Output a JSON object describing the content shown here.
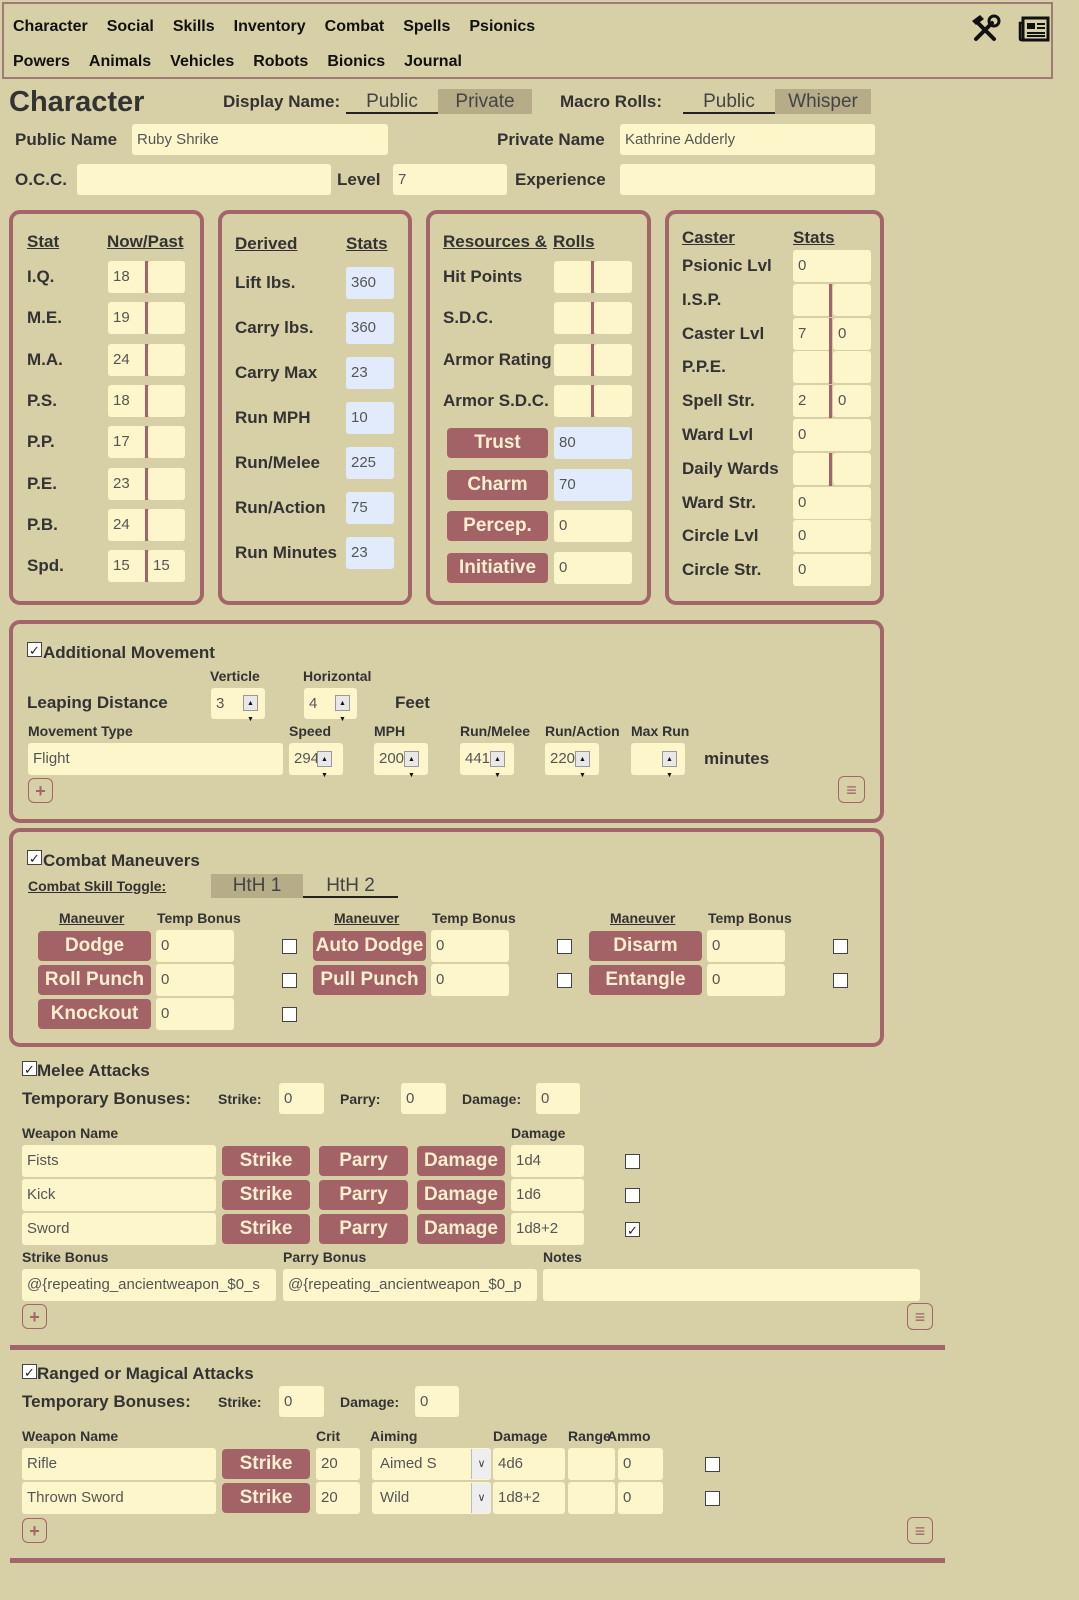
{
  "nav": {
    "row1": [
      "Character",
      "Social",
      "Skills",
      "Inventory",
      "Combat",
      "Spells",
      "Psionics"
    ],
    "row2": [
      "Powers",
      "Animals",
      "Vehicles",
      "Robots",
      "Bionics",
      "Journal"
    ],
    "icons": [
      "tools-icon",
      "journal-icon"
    ]
  },
  "header": {
    "title": "Character",
    "display_name_label": "Display Name:",
    "display_options": [
      "Public",
      "Private"
    ],
    "display_selected": "Public",
    "macro_label": "Macro Rolls:",
    "macro_options": [
      "Public",
      "Whisper"
    ],
    "macro_selected": "Public"
  },
  "identity": {
    "public_name_label": "Public Name",
    "public_name": "Ruby Shrike",
    "private_name_label": "Private Name",
    "private_name": "Kathrine Adderly",
    "occ_label": "O.C.C.",
    "occ": "",
    "level_label": "Level",
    "level": "7",
    "experience_label": "Experience",
    "experience": ""
  },
  "stats": {
    "header_stat": "Stat",
    "header_nowpast": "Now/Past",
    "rows": [
      {
        "label": "I.Q.",
        "now": "18",
        "past": ""
      },
      {
        "label": "M.E.",
        "now": "19",
        "past": ""
      },
      {
        "label": "M.A.",
        "now": "24",
        "past": ""
      },
      {
        "label": "P.S.",
        "now": "18",
        "past": ""
      },
      {
        "label": "P.P.",
        "now": "17",
        "past": ""
      },
      {
        "label": "P.E.",
        "now": "23",
        "past": ""
      },
      {
        "label": "P.B.",
        "now": "24",
        "past": ""
      },
      {
        "label": "Spd.",
        "now": "15",
        "past": "15"
      }
    ]
  },
  "derived": {
    "header_a": "Derived",
    "header_b": "Stats",
    "rows": [
      {
        "label": "Lift lbs.",
        "value": "360"
      },
      {
        "label": "Carry lbs.",
        "value": "360"
      },
      {
        "label": "Carry Max",
        "value": "23"
      },
      {
        "label": "Run MPH",
        "value": "10"
      },
      {
        "label": "Run/Melee",
        "value": "225"
      },
      {
        "label": "Run/Action",
        "value": "75"
      },
      {
        "label": "Run Minutes",
        "value": "23"
      }
    ]
  },
  "resources": {
    "header_a": "Resources &",
    "header_b": "Rolls",
    "rows": [
      {
        "label": "Hit Points",
        "a": "",
        "b": ""
      },
      {
        "label": "S.D.C.",
        "a": "",
        "b": ""
      },
      {
        "label": "Armor Rating",
        "a": "",
        "b": ""
      },
      {
        "label": "Armor S.D.C.",
        "a": "",
        "b": ""
      }
    ],
    "rolls": [
      {
        "label": "Trust",
        "value": "80",
        "highlight": true
      },
      {
        "label": "Charm",
        "value": "70",
        "highlight": true
      },
      {
        "label": "Percep.",
        "value": "0",
        "highlight": false
      },
      {
        "label": "Initiative",
        "value": "0",
        "highlight": false
      }
    ]
  },
  "caster": {
    "header_a": "Caster",
    "header_b": "Stats",
    "rows": [
      {
        "label": "Psionic Lvl",
        "value": "0"
      },
      {
        "label": "I.S.P.",
        "a": "",
        "b": ""
      },
      {
        "label": "Caster Lvl",
        "a": "7",
        "b": "0"
      },
      {
        "label": "P.P.E.",
        "a": "",
        "b": ""
      },
      {
        "label": "Spell Str.",
        "a": "2",
        "b": "0"
      },
      {
        "label": "Ward Lvl",
        "value": "0"
      },
      {
        "label": "Daily Wards",
        "a": "",
        "b": ""
      },
      {
        "label": "Ward Str.",
        "value": "0"
      },
      {
        "label": "Circle Lvl",
        "value": "0"
      },
      {
        "label": "Circle Str.",
        "value": "0"
      }
    ]
  },
  "movement": {
    "enabled": true,
    "title": "Additional Movement",
    "verticle_label": "Verticle",
    "horizontal_label": "Horizontal",
    "leaping_label": "Leaping Distance",
    "verticle": "3",
    "horizontal": "4",
    "feet_label": "Feet",
    "columns": [
      "Movement Type",
      "Speed",
      "MPH",
      "Run/Melee",
      "Run/Action",
      "Max Run"
    ],
    "rows": [
      {
        "type": "Flight",
        "speed": "294",
        "mph": "200",
        "run_melee": "441",
        "run_action": "220",
        "max_run": ""
      }
    ],
    "minutes_label": "minutes"
  },
  "combat": {
    "enabled": true,
    "title": "Combat Maneuvers",
    "toggle_label": "Combat Skill Toggle:",
    "toggle_options": [
      "HtH 1",
      "HtH 2"
    ],
    "toggle_selected": "HtH 2",
    "maneuver_header": "Maneuver",
    "bonus_header": "Temp Bonus",
    "columns": [
      [
        {
          "label": "Dodge",
          "bonus": "0",
          "checked": false
        },
        {
          "label": "Roll Punch",
          "bonus": "0",
          "checked": false
        },
        {
          "label": "Knockout",
          "bonus": "0",
          "checked": false
        }
      ],
      [
        {
          "label": "Auto Dodge",
          "bonus": "0",
          "checked": false
        },
        {
          "label": "Pull Punch",
          "bonus": "0",
          "checked": false
        }
      ],
      [
        {
          "label": "Disarm",
          "bonus": "0",
          "checked": false
        },
        {
          "label": "Entangle",
          "bonus": "0",
          "checked": false
        }
      ]
    ]
  },
  "melee": {
    "enabled": true,
    "title": "Melee Attacks",
    "temp_label": "Temporary Bonuses:",
    "strike_label": "Strike:",
    "strike": "0",
    "parry_label": "Parry:",
    "parry": "0",
    "damage_label": "Damage:",
    "damage": "0",
    "weapon_header": "Weapon Name",
    "damage_header": "Damage",
    "strike_button": "Strike",
    "parry_button": "Parry",
    "damage_button": "Damage",
    "weapons": [
      {
        "name": "Fists",
        "damage": "1d4",
        "checked": false
      },
      {
        "name": "Kick",
        "damage": "1d6",
        "checked": false
      },
      {
        "name": "Sword",
        "damage": "1d8+2",
        "checked": true
      }
    ],
    "strike_bonus_label": "Strike Bonus",
    "parry_bonus_label": "Parry Bonus",
    "notes_label": "Notes",
    "strike_bonus": "@{repeating_ancientweapon_$0_s",
    "parry_bonus": "@{repeating_ancientweapon_$0_p",
    "notes": ""
  },
  "ranged": {
    "enabled": true,
    "title": "Ranged or Magical Attacks",
    "temp_label": "Temporary Bonuses:",
    "strike_label": "Strike:",
    "strike": "0",
    "damage_label": "Damage:",
    "damage": "0",
    "headers": {
      "weapon": "Weapon Name",
      "crit": "Crit",
      "aiming": "Aiming",
      "damage": "Damage",
      "range": "Range",
      "ammo": "Ammo"
    },
    "strike_button": "Strike",
    "weapons": [
      {
        "name": "Rifle",
        "crit": "20",
        "aiming": "Aimed S",
        "damage": "4d6",
        "range": "",
        "ammo": "0",
        "checked": false
      },
      {
        "name": "Thrown Sword",
        "crit": "20",
        "aiming": "Wild",
        "damage": "1d8+2",
        "range": "",
        "ammo": "0",
        "checked": false
      }
    ]
  },
  "colors": {
    "background": "#d7cfa6",
    "input": "#fef6cb",
    "input_highlight": "#e1ebfb",
    "accent": "#a2666a",
    "button_text": "#fbefd0"
  }
}
